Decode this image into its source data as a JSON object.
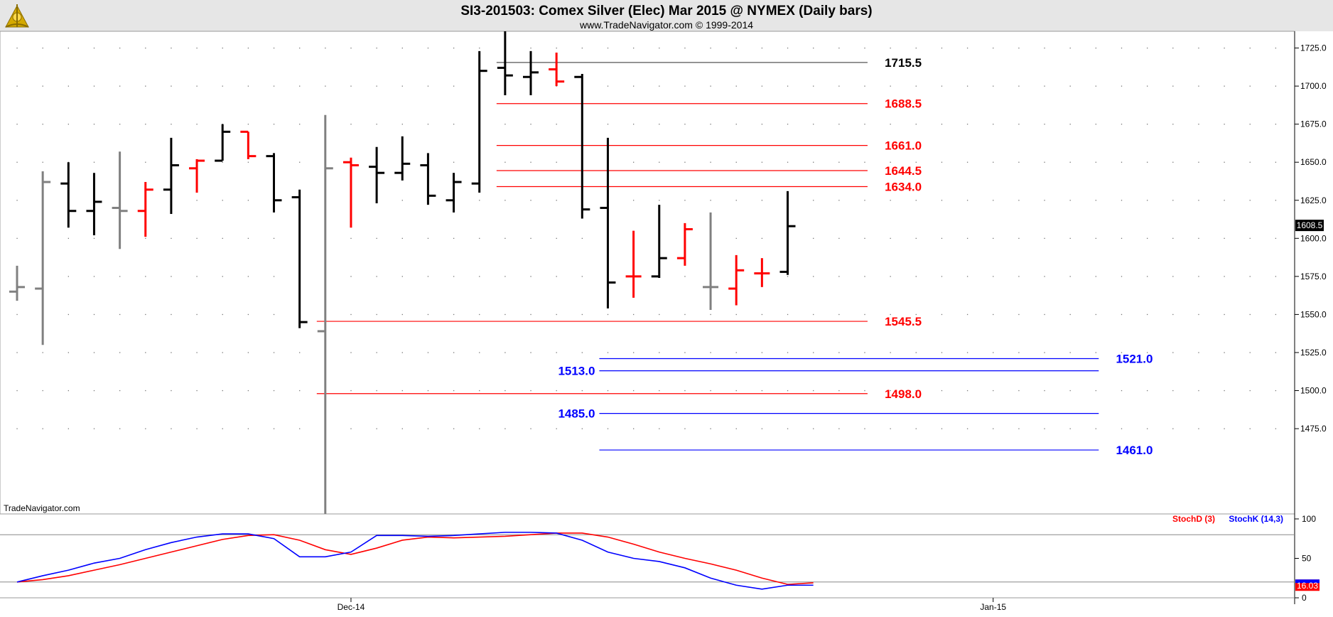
{
  "chart_data": {
    "type": "bar",
    "title": "SI3-201503:  Comex Silver (Elec) Mar 2015 @ NYMEX  (Daily bars)",
    "subtitle": "www.TradeNavigator.com © 1999-2014",
    "watermark": "TradeNavigator.com",
    "logo": "sextant-logo",
    "grid": true,
    "price_axis": {
      "ylim": [
        1419,
        1736
      ],
      "ticks": [
        1475.0,
        1500.0,
        1525.0,
        1550.0,
        1575.0,
        1600.0,
        1625.0,
        1650.0,
        1675.0,
        1700.0,
        1725.0
      ],
      "tick_labels": [
        "1475.0",
        "1500.0",
        "1525.0",
        "1550.0",
        "1575.0",
        "1600.0",
        "1625.0",
        "1650.0",
        "1675.0",
        "1700.0",
        "1725.0"
      ],
      "last_price": 1608.5,
      "last_price_label": "1608.5"
    },
    "date_labels": [
      {
        "bar": 13,
        "text": "Dec-14"
      },
      {
        "bar": 38,
        "text": "Jan-15"
      }
    ],
    "colors": {
      "up": "#000000",
      "down": "#ff0000",
      "neutral": "#808080",
      "red_level": "#ff0000",
      "blue_level": "#0000ff",
      "level_gray": "#555555"
    },
    "bars": [
      {
        "o": 1565,
        "h": 1582,
        "l": 1559,
        "c": 1568,
        "color": "neutral"
      },
      {
        "o": 1567,
        "h": 1644,
        "l": 1530,
        "c": 1637,
        "color": "neutral"
      },
      {
        "o": 1636,
        "h": 1650,
        "l": 1607,
        "c": 1618,
        "color": "up"
      },
      {
        "o": 1618,
        "h": 1643,
        "l": 1602,
        "c": 1624,
        "color": "up"
      },
      {
        "o": 1620,
        "h": 1657,
        "l": 1593,
        "c": 1618,
        "color": "neutral"
      },
      {
        "o": 1618,
        "h": 1637,
        "l": 1601,
        "c": 1632,
        "color": "down"
      },
      {
        "o": 1632,
        "h": 1666,
        "l": 1616,
        "c": 1648,
        "color": "up"
      },
      {
        "o": 1646,
        "h": 1652,
        "l": 1630,
        "c": 1651,
        "color": "down"
      },
      {
        "o": 1651,
        "h": 1675,
        "l": 1651,
        "c": 1670,
        "color": "up"
      },
      {
        "o": 1670,
        "h": 1670,
        "l": 1652,
        "c": 1654,
        "color": "down"
      },
      {
        "o": 1654,
        "h": 1656,
        "l": 1617,
        "c": 1625,
        "color": "up"
      },
      {
        "o": 1627,
        "h": 1632,
        "l": 1541,
        "c": 1545,
        "color": "up"
      },
      {
        "o": 1539,
        "h": 1681,
        "l": 1419,
        "c": 1646,
        "color": "neutral"
      },
      {
        "o": 1650,
        "h": 1653,
        "l": 1607,
        "c": 1648,
        "color": "down"
      },
      {
        "o": 1647,
        "h": 1660,
        "l": 1623,
        "c": 1643,
        "color": "up"
      },
      {
        "o": 1643,
        "h": 1667,
        "l": 1638,
        "c": 1649,
        "color": "up"
      },
      {
        "o": 1648,
        "h": 1656,
        "l": 1622,
        "c": 1628,
        "color": "up"
      },
      {
        "o": 1625,
        "h": 1643,
        "l": 1617,
        "c": 1637,
        "color": "up"
      },
      {
        "o": 1636,
        "h": 1723,
        "l": 1630,
        "c": 1710,
        "color": "up"
      },
      {
        "o": 1712,
        "h": 1736,
        "l": 1694,
        "c": 1707,
        "color": "up"
      },
      {
        "o": 1706,
        "h": 1723,
        "l": 1694,
        "c": 1709,
        "color": "up"
      },
      {
        "o": 1711,
        "h": 1722,
        "l": 1700,
        "c": 1703,
        "color": "down"
      },
      {
        "o": 1706,
        "h": 1708,
        "l": 1613,
        "c": 1619,
        "color": "up"
      },
      {
        "o": 1620,
        "h": 1666,
        "l": 1554,
        "c": 1571,
        "color": "up"
      },
      {
        "o": 1575,
        "h": 1605,
        "l": 1561,
        "c": 1575,
        "color": "down"
      },
      {
        "o": 1575,
        "h": 1622,
        "l": 1574,
        "c": 1587,
        "color": "up"
      },
      {
        "o": 1587,
        "h": 1610,
        "l": 1582,
        "c": 1606,
        "color": "down"
      },
      {
        "o": 1568,
        "h": 1617,
        "l": 1553,
        "c": 1568,
        "color": "neutral"
      },
      {
        "o": 1567,
        "h": 1589,
        "l": 1556,
        "c": 1579,
        "color": "down"
      },
      {
        "o": 1577,
        "h": 1587,
        "l": 1568,
        "c": 1577,
        "color": "down"
      },
      {
        "o": 1578,
        "h": 1631,
        "l": 1576,
        "c": 1608,
        "color": "up"
      }
    ],
    "levels": [
      {
        "value": 1715.5,
        "label": "1715.5",
        "color": "level_gray",
        "text_color": "#000000",
        "from_bar": 19,
        "to_bar": 33,
        "label_bar": 34,
        "label_side": "right"
      },
      {
        "value": 1688.5,
        "label": "1688.5",
        "color": "red_level",
        "text_color": "#ff0000",
        "from_bar": 19,
        "to_bar": 33,
        "label_bar": 34,
        "label_side": "right"
      },
      {
        "value": 1661.0,
        "label": "1661.0",
        "color": "red_level",
        "text_color": "#ff0000",
        "from_bar": 19,
        "to_bar": 33,
        "label_bar": 34,
        "label_side": "right"
      },
      {
        "value": 1644.5,
        "label": "1644.5",
        "color": "red_level",
        "text_color": "#ff0000",
        "from_bar": 19,
        "to_bar": 33,
        "label_bar": 34,
        "label_side": "right"
      },
      {
        "value": 1634.0,
        "label": "1634.0",
        "color": "red_level",
        "text_color": "#ff0000",
        "from_bar": 19,
        "to_bar": 33,
        "label_bar": 34,
        "label_side": "right"
      },
      {
        "value": 1545.5,
        "label": "1545.5",
        "color": "red_level",
        "text_color": "#ff0000",
        "from_bar": 12,
        "to_bar": 33,
        "label_bar": 34,
        "label_side": "right"
      },
      {
        "value": 1498.0,
        "label": "1498.0",
        "color": "red_level",
        "text_color": "#ff0000",
        "from_bar": 12,
        "to_bar": 33,
        "label_bar": 34,
        "label_side": "right"
      },
      {
        "value": 1521.0,
        "label": "1521.0",
        "color": "blue_level",
        "text_color": "#0000ff",
        "from_bar": 23,
        "to_bar": 42,
        "label_bar": 43,
        "label_side": "right"
      },
      {
        "value": 1513.0,
        "label": "1513.0",
        "color": "blue_level",
        "text_color": "#0000ff",
        "from_bar": 23,
        "to_bar": 42,
        "label_bar": 23,
        "label_side": "left"
      },
      {
        "value": 1485.0,
        "label": "1485.0",
        "color": "blue_level",
        "text_color": "#0000ff",
        "from_bar": 23,
        "to_bar": 42,
        "label_bar": 23,
        "label_side": "left"
      },
      {
        "value": 1461.0,
        "label": "1461.0",
        "color": "blue_level",
        "text_color": "#0000ff",
        "from_bar": 23,
        "to_bar": 42,
        "label_bar": 43,
        "label_side": "right"
      }
    ],
    "stochastic": {
      "ylim": [
        0,
        100
      ],
      "ticks": [
        0,
        50,
        100
      ],
      "tick_labels": [
        "0",
        "50",
        "100"
      ],
      "reference_lines": [
        80,
        20
      ],
      "series": [
        {
          "name": "StochD (3)",
          "color": "#ff0000",
          "values": [
            20,
            23,
            28,
            35,
            42,
            50,
            58,
            66,
            74,
            79,
            80,
            73,
            61,
            55,
            63,
            73,
            77,
            76,
            77,
            78,
            80,
            82,
            82,
            77,
            68,
            58,
            50,
            43,
            35,
            25,
            17,
            19
          ]
        },
        {
          "name": "StochK (14,3)",
          "color": "#0000ff",
          "values": [
            20,
            28,
            35,
            44,
            50,
            61,
            70,
            77,
            81,
            81,
            75,
            52,
            52,
            58,
            79,
            79,
            78,
            79,
            81,
            83,
            83,
            82,
            73,
            58,
            50,
            46,
            38,
            25,
            16,
            11,
            16,
            16
          ]
        }
      ],
      "last_value_label": "16.03"
    }
  }
}
